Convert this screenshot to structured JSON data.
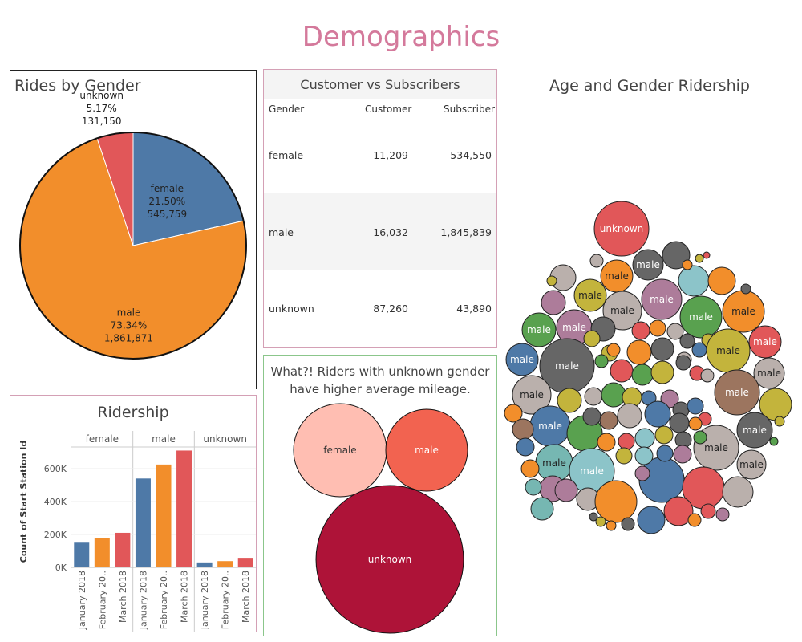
{
  "dashboard_title": "Demographics",
  "pie_panel": {
    "title": "Rides by Gender"
  },
  "table_panel": {
    "title": "Customer vs Subscribers",
    "headers": [
      "Gender",
      "Customer",
      "Subscriber"
    ],
    "rows": [
      {
        "gender": "female",
        "customer": "11,209",
        "subscriber": "534,550"
      },
      {
        "gender": "male",
        "customer": "16,032",
        "subscriber": "1,845,839"
      },
      {
        "gender": "unknown",
        "customer": "87,260",
        "subscriber": "43,890"
      }
    ]
  },
  "bubble_panel": {
    "title": "Age and Gender Ridership"
  },
  "ridership_panel": {
    "title": "Ridership"
  },
  "mileage_panel": {
    "title_line1": "What?!  Riders with unknown gender",
    "title_line2": "have higher average mileage."
  },
  "colors": {
    "female": "#4e79a7",
    "male": "#f28e2b",
    "unknown": "#e15759",
    "title_pink": "#d4799b"
  },
  "chart_data": [
    {
      "type": "pie",
      "title": "Rides by Gender",
      "slices": [
        {
          "label": "female",
          "percent": "21.50%",
          "count": "545,759",
          "value": 545759
        },
        {
          "label": "male",
          "percent": "73.34%",
          "count": "1,861,871",
          "value": 1861871
        },
        {
          "label": "unknown",
          "percent": "5.17%",
          "count": "131,150",
          "value": 131150
        }
      ]
    },
    {
      "type": "bar",
      "title": "Ridership",
      "ylabel": "Count of Start Station Id",
      "yticks": [
        "0K",
        "200K",
        "400K",
        "600K"
      ],
      "ylim": [
        0,
        800000
      ],
      "panels": [
        "female",
        "male",
        "unknown"
      ],
      "categories": [
        "January 2018",
        "February 20..",
        "March 2018"
      ],
      "series": [
        {
          "panel": "female",
          "values": [
            150000,
            180000,
            210000
          ]
        },
        {
          "panel": "male",
          "values": [
            540000,
            625000,
            710000
          ]
        },
        {
          "panel": "unknown",
          "values": [
            30000,
            38000,
            58000
          ]
        }
      ]
    },
    {
      "type": "bubble",
      "title": "What?!  Riders with unknown gender have higher average mileage.",
      "bubbles": [
        {
          "label": "female",
          "color": "#ffbeb2"
        },
        {
          "label": "male",
          "color": "#f26350"
        },
        {
          "label": "unknown",
          "color": "#ae1338"
        }
      ]
    },
    {
      "type": "bubble",
      "title": "Age and Gender Ridership",
      "labeled_bubbles": [
        "unknown",
        "male",
        "male",
        "male",
        "male",
        "male",
        "male",
        "male",
        "male",
        "male",
        "male",
        "male",
        "male",
        "male",
        "male",
        "male",
        "male",
        "male",
        "male",
        "male",
        "male",
        "male",
        "male"
      ]
    }
  ]
}
